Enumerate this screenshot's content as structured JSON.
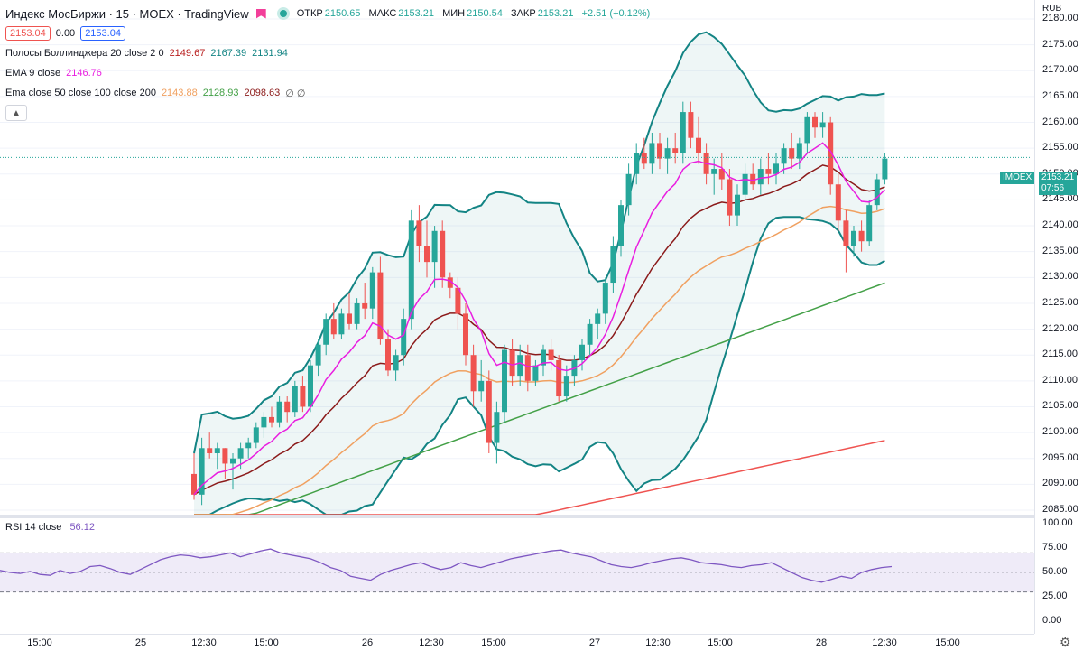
{
  "header": {
    "title": "Индекс МосБиржи · 15 · MOEX · TradingView",
    "ohlc": [
      {
        "label": "ОТКР",
        "value": "2150.65"
      },
      {
        "label": "МАКС",
        "value": "2153.21"
      },
      {
        "label": "МИН",
        "value": "2150.54"
      },
      {
        "label": "ЗАКР",
        "value": "2153.21"
      }
    ],
    "change": "+2.51 (+0.12%)",
    "sell_box": "2153.04",
    "spread": "0.00",
    "buy_box": "2153.04"
  },
  "indicators": {
    "bollinger": {
      "label": "Полосы Боллинджера 20 close 2 0",
      "values": [
        "2149.67",
        "2167.39",
        "2131.94"
      ]
    },
    "ema9": {
      "label": "EMA 9 close",
      "value": "2146.76"
    },
    "ema_multi": {
      "label": "Ema close 50 close 100 close 200",
      "values": [
        "2143.88",
        "2128.93",
        "2098.63"
      ],
      "extra": "∅ ∅"
    }
  },
  "rsi": {
    "label": "RSI 14 close",
    "value": "56.12"
  },
  "price_axis": {
    "currency": "RUB",
    "ticks": [
      "2180.00",
      "2175.00",
      "2170.00",
      "2165.00",
      "2160.00",
      "2155.00",
      "2150.00",
      "2145.00",
      "2140.00",
      "2135.00",
      "2130.00",
      "2125.00",
      "2120.00",
      "2115.00",
      "2110.00",
      "2105.00",
      "2100.00",
      "2095.00",
      "2090.00",
      "2085.00"
    ],
    "symbol_tag": "IMOEX",
    "last_price": "2153.21",
    "countdown": "07:56"
  },
  "rsi_axis": {
    "ticks": [
      "100.00",
      "75.00",
      "50.00",
      "25.00",
      "0.00"
    ]
  },
  "time_axis": {
    "ticks": [
      "15:00",
      "25",
      "12:30",
      "15:00",
      "26",
      "12:30",
      "15:00",
      "27",
      "12:30",
      "15:00",
      "28",
      "12:30",
      "15:00"
    ]
  },
  "colors": {
    "up": "#26a69a",
    "down": "#ef5350",
    "bb": "#138484",
    "ema9": "#e91ee0",
    "ema50": "#8b1a1a",
    "ema100": "#f0a060",
    "ema200": "#43a047",
    "ema_extra": "#ef5350",
    "rsi": "#7e57c2"
  },
  "chart_data": {
    "type": "candlestick",
    "ylim": [
      2085,
      2180
    ],
    "rsi_ylim": [
      0,
      100
    ],
    "candles": [
      [
        2092,
        2096,
        2087,
        2088
      ],
      [
        2088,
        2099,
        2086,
        2097
      ],
      [
        2097,
        2100,
        2095,
        2096
      ],
      [
        2096,
        2098,
        2093,
        2097
      ],
      [
        2097,
        2097,
        2091,
        2094
      ],
      [
        2094,
        2096,
        2089,
        2095
      ],
      [
        2095,
        2098,
        2093,
        2097
      ],
      [
        2097,
        2099,
        2095,
        2098
      ],
      [
        2098,
        2102,
        2097,
        2101
      ],
      [
        2101,
        2104,
        2099,
        2103
      ],
      [
        2103,
        2105,
        2101,
        2102
      ],
      [
        2102,
        2107,
        2101,
        2106
      ],
      [
        2106,
        2107,
        2102,
        2104
      ],
      [
        2104,
        2110,
        2103,
        2109
      ],
      [
        2109,
        2111,
        2104,
        2105
      ],
      [
        2105,
        2114,
        2104,
        2113
      ],
      [
        2113,
        2118,
        2111,
        2117
      ],
      [
        2117,
        2123,
        2115,
        2122
      ],
      [
        2122,
        2125,
        2118,
        2119
      ],
      [
        2119,
        2124,
        2118,
        2123
      ],
      [
        2123,
        2127,
        2120,
        2121
      ],
      [
        2121,
        2126,
        2120,
        2125
      ],
      [
        2125,
        2129,
        2122,
        2124
      ],
      [
        2124,
        2132,
        2122,
        2131
      ],
      [
        2131,
        2134,
        2117,
        2118
      ],
      [
        2118,
        2120,
        2111,
        2112
      ],
      [
        2112,
        2116,
        2110,
        2115
      ],
      [
        2115,
        2124,
        2113,
        2122
      ],
      [
        2122,
        2143,
        2120,
        2141
      ],
      [
        2141,
        2144,
        2133,
        2136
      ],
      [
        2136,
        2141,
        2130,
        2133
      ],
      [
        2133,
        2140,
        2128,
        2139
      ],
      [
        2139,
        2141,
        2128,
        2130
      ],
      [
        2130,
        2131,
        2126,
        2128
      ],
      [
        2128,
        2130,
        2120,
        2123
      ],
      [
        2123,
        2125,
        2113,
        2115
      ],
      [
        2115,
        2117,
        2105,
        2108
      ],
      [
        2108,
        2114,
        2106,
        2110
      ],
      [
        2110,
        2112,
        2096,
        2098
      ],
      [
        2098,
        2106,
        2094,
        2104
      ],
      [
        2104,
        2117,
        2102,
        2116
      ],
      [
        2116,
        2118,
        2109,
        2111
      ],
      [
        2111,
        2117,
        2109,
        2115
      ],
      [
        2115,
        2117,
        2108,
        2110
      ],
      [
        2110,
        2114,
        2109,
        2113
      ],
      [
        2113,
        2117,
        2111,
        2116
      ],
      [
        2116,
        2118,
        2112,
        2114
      ],
      [
        2114,
        2115,
        2106,
        2107
      ],
      [
        2107,
        2113,
        2106,
        2111
      ],
      [
        2111,
        2115,
        2109,
        2114
      ],
      [
        2114,
        2118,
        2112,
        2117
      ],
      [
        2117,
        2122,
        2115,
        2121
      ],
      [
        2121,
        2124,
        2118,
        2123
      ],
      [
        2123,
        2130,
        2121,
        2129
      ],
      [
        2129,
        2138,
        2127,
        2136
      ],
      [
        2136,
        2145,
        2134,
        2144
      ],
      [
        2144,
        2152,
        2142,
        2150
      ],
      [
        2150,
        2156,
        2148,
        2154
      ],
      [
        2154,
        2157,
        2151,
        2152
      ],
      [
        2152,
        2158,
        2150,
        2156
      ],
      [
        2156,
        2158,
        2151,
        2153
      ],
      [
        2153,
        2157,
        2150,
        2155
      ],
      [
        2155,
        2158,
        2152,
        2154
      ],
      [
        2154,
        2164,
        2152,
        2162
      ],
      [
        2162,
        2164,
        2155,
        2157
      ],
      [
        2157,
        2161,
        2152,
        2154
      ],
      [
        2154,
        2156,
        2148,
        2150
      ],
      [
        2150,
        2153,
        2146,
        2151
      ],
      [
        2151,
        2154,
        2147,
        2149
      ],
      [
        2149,
        2151,
        2140,
        2142
      ],
      [
        2142,
        2148,
        2140,
        2146
      ],
      [
        2146,
        2152,
        2145,
        2150
      ],
      [
        2150,
        2152,
        2147,
        2148
      ],
      [
        2148,
        2153,
        2146,
        2151
      ],
      [
        2151,
        2154,
        2148,
        2150
      ],
      [
        2150,
        2154,
        2148,
        2152
      ],
      [
        2152,
        2156,
        2150,
        2155
      ],
      [
        2155,
        2158,
        2151,
        2153
      ],
      [
        2153,
        2157,
        2151,
        2156
      ],
      [
        2156,
        2162,
        2154,
        2161
      ],
      [
        2161,
        2162,
        2157,
        2159
      ],
      [
        2159,
        2162,
        2157,
        2160
      ],
      [
        2160,
        2161,
        2146,
        2148
      ],
      [
        2148,
        2150,
        2139,
        2141
      ],
      [
        2141,
        2143,
        2131,
        2136
      ],
      [
        2136,
        2140,
        2134,
        2139
      ],
      [
        2139,
        2141,
        2135,
        2137
      ],
      [
        2137,
        2145,
        2136,
        2144
      ],
      [
        2144,
        2150,
        2143,
        2149
      ],
      [
        2149,
        2154,
        2148,
        2153
      ]
    ],
    "rsi": [
      52,
      50,
      49,
      51,
      48,
      47,
      52,
      49,
      51,
      56,
      57,
      54,
      50,
      48,
      53,
      58,
      63,
      66,
      68,
      67,
      65,
      66,
      68,
      70,
      66,
      69,
      72,
      74,
      70,
      68,
      66,
      64,
      60,
      55,
      52,
      46,
      44,
      42,
      48,
      52,
      55,
      58,
      60,
      56,
      53,
      55,
      60,
      57,
      55,
      58,
      61,
      64,
      66,
      68,
      70,
      72,
      73,
      70,
      68,
      66,
      62,
      58,
      56,
      55,
      57,
      60,
      62,
      64,
      65,
      63,
      60,
      59,
      58,
      56,
      55,
      57,
      58,
      60,
      55,
      50,
      45,
      42,
      40,
      43,
      46,
      44,
      50,
      53,
      55,
      56
    ]
  }
}
